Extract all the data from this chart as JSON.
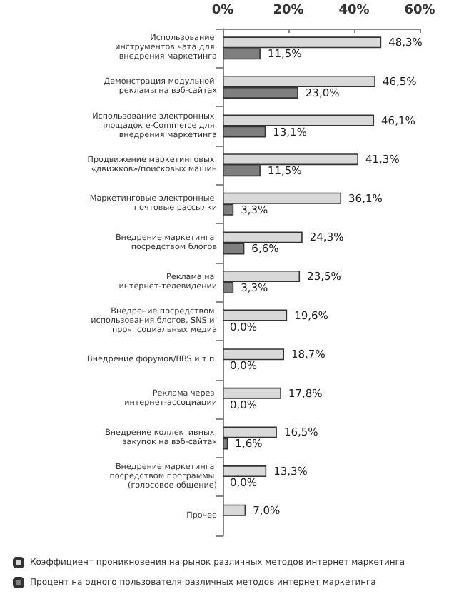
{
  "chart_data": {
    "type": "bar",
    "orientation": "horizontal",
    "categories": [
      "Использование инструментов чата для внедрения маркетинга",
      "Демонстрация модульной рекламы на вэб-сайтах",
      "Использование электронных площадок e-Commerce для внедрения маркетинга",
      "Продвижение маркетинговых «движков»/поисковых машин",
      "Маркетинговые электронные почтовые рассылки",
      "Внедрение маркетинга посредством блогов",
      "Реклама на интернет-телевидении",
      "Внедрение посредством использования блогов, SNS и проч. социальных медиа",
      "Внедрение форумов/BBS и т.п.",
      "Реклама через интернет-ассоциации",
      "Внедрение коллективных закупок на вэб-сайтах",
      "Внедрение маркетинга посредством программы (голосовое общение)",
      "Прочее"
    ],
    "series": [
      {
        "name": "Коэффициент проникновения на рынок различных методов интернет маркетинга",
        "color": "#d9d9d9",
        "values": [
          48.3,
          46.5,
          46.1,
          41.3,
          36.1,
          24.3,
          23.5,
          19.6,
          18.7,
          17.8,
          16.5,
          13.3,
          7.0
        ],
        "value_labels": [
          "48,3%",
          "46,5%",
          "46,1%",
          "41,3%",
          "36,1%",
          "24,3%",
          "23,5%",
          "19,6%",
          "18,7%",
          "17,8%",
          "16,5%",
          "13,3%",
          "7,0%"
        ]
      },
      {
        "name": "Процент на одного пользователя различных методов интернет маркетинга",
        "color": "#7f7f7f",
        "values": [
          11.5,
          23.0,
          13.1,
          11.5,
          3.3,
          6.6,
          3.3,
          0.0,
          0.0,
          0.0,
          1.6,
          0.0,
          null
        ],
        "value_labels": [
          "11,5%",
          "23,0%",
          "13,1%",
          "11,5%",
          "3,3%",
          "6,6%",
          "3,3%",
          "0,0%",
          "0,0%",
          "0,0%",
          "1,6%",
          "0,0%",
          null
        ]
      }
    ],
    "xlim": [
      0,
      60
    ],
    "xticks": [
      {
        "value": 0,
        "label": "0%"
      },
      {
        "value": 20,
        "label": "20%"
      },
      {
        "value": 40,
        "label": "40%"
      },
      {
        "value": 60,
        "label": "60%"
      }
    ],
    "grid": false,
    "legend": "bottom"
  }
}
